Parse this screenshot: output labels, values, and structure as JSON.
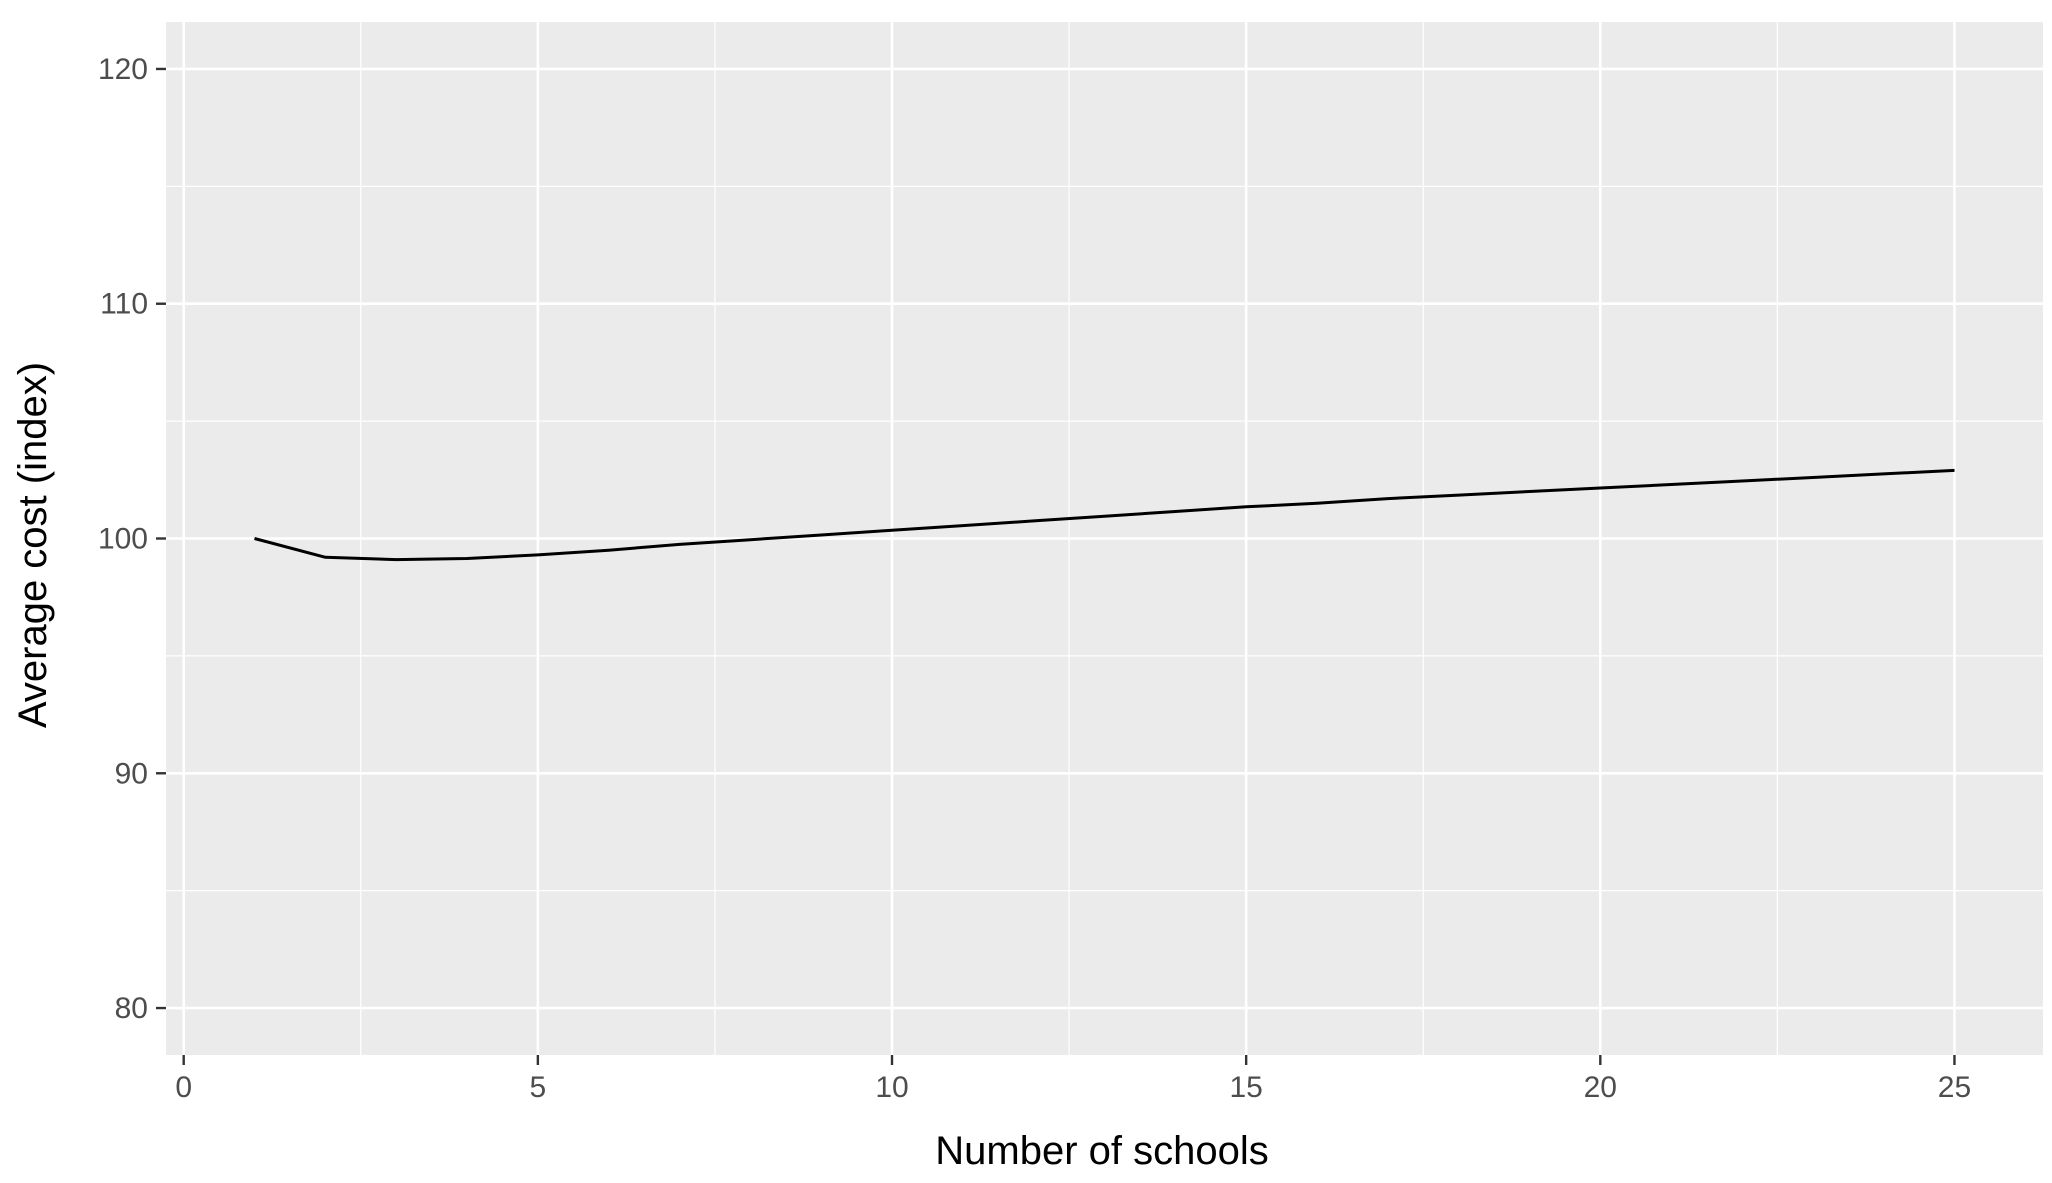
{
  "chart_data": {
    "type": "line",
    "title": "",
    "xlabel": "Number of schools",
    "ylabel": "Average cost (index)",
    "xlim": [
      -0.25,
      26.25
    ],
    "ylim": [
      78,
      122
    ],
    "x_ticks": [
      0,
      5,
      10,
      15,
      20,
      25
    ],
    "x_tick_labels": [
      "0",
      "5",
      "10",
      "15",
      "20",
      "25"
    ],
    "y_ticks": [
      80,
      90,
      100,
      110,
      120
    ],
    "y_tick_labels": [
      "80",
      "90",
      "100",
      "110",
      "120"
    ],
    "grid": true,
    "legend": "none",
    "colors": {
      "panel_background": "#ebebeb",
      "grid": "#ffffff",
      "line": "#000000",
      "tick_text": "#4d4d4d",
      "axis_title": "#000000"
    },
    "series": [
      {
        "x": [
          1,
          2,
          3,
          4,
          5,
          6,
          7,
          8,
          9,
          10,
          11,
          12,
          13,
          14,
          15,
          16,
          17,
          18,
          19,
          20,
          21,
          22,
          23,
          24,
          25
        ],
        "y": [
          100.0,
          99.2,
          99.1,
          99.15,
          99.3,
          99.5,
          99.75,
          99.95,
          100.15,
          100.35,
          100.55,
          100.75,
          100.95,
          101.15,
          101.35,
          101.5,
          101.7,
          101.85,
          102.0,
          102.15,
          102.3,
          102.45,
          102.6,
          102.75,
          102.9
        ]
      }
    ]
  }
}
